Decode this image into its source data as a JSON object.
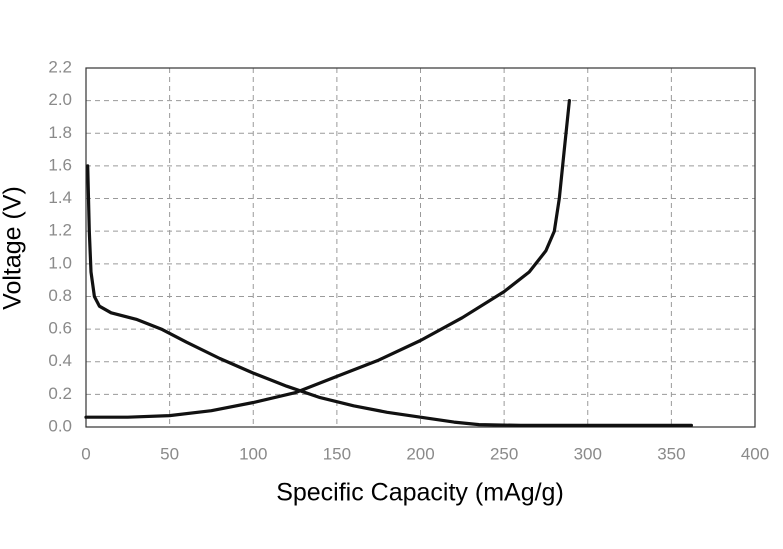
{
  "chart_data": {
    "type": "line",
    "xlabel": "Specific Capacity (mAg/g)",
    "ylabel": "Voltage (V)",
    "xlim": [
      0,
      400
    ],
    "ylim": [
      0,
      2.2
    ],
    "xticks": [
      0,
      50,
      100,
      150,
      200,
      250,
      300,
      350,
      400
    ],
    "yticks": [
      {
        "value": 0,
        "label": "0.0"
      },
      0.2,
      0.4,
      0.6,
      0.8,
      {
        "value": 1,
        "label": "1.0"
      },
      1.2,
      1.4,
      1.6,
      1.8,
      {
        "value": 2,
        "label": "2.0"
      },
      2.2
    ],
    "grid": true,
    "series": [
      {
        "color": "#111111",
        "x": [
          1,
          2,
          3,
          5,
          8,
          15,
          30,
          45,
          60,
          80,
          100,
          120,
          140,
          160,
          180,
          200,
          220,
          235,
          260,
          300,
          340,
          362
        ],
        "values": [
          1.6,
          1.2,
          0.95,
          0.8,
          0.74,
          0.7,
          0.66,
          0.6,
          0.52,
          0.42,
          0.33,
          0.25,
          0.18,
          0.13,
          0.09,
          0.06,
          0.03,
          0.015,
          0.01,
          0.01,
          0.01,
          0.01
        ]
      },
      {
        "color": "#111111",
        "x": [
          0,
          25,
          50,
          75,
          100,
          125,
          150,
          175,
          200,
          225,
          250,
          265,
          275,
          280,
          283,
          286,
          289
        ],
        "values": [
          0.06,
          0.06,
          0.07,
          0.1,
          0.15,
          0.21,
          0.31,
          0.41,
          0.53,
          0.67,
          0.83,
          0.95,
          1.08,
          1.2,
          1.4,
          1.7,
          2.0
        ]
      }
    ]
  }
}
